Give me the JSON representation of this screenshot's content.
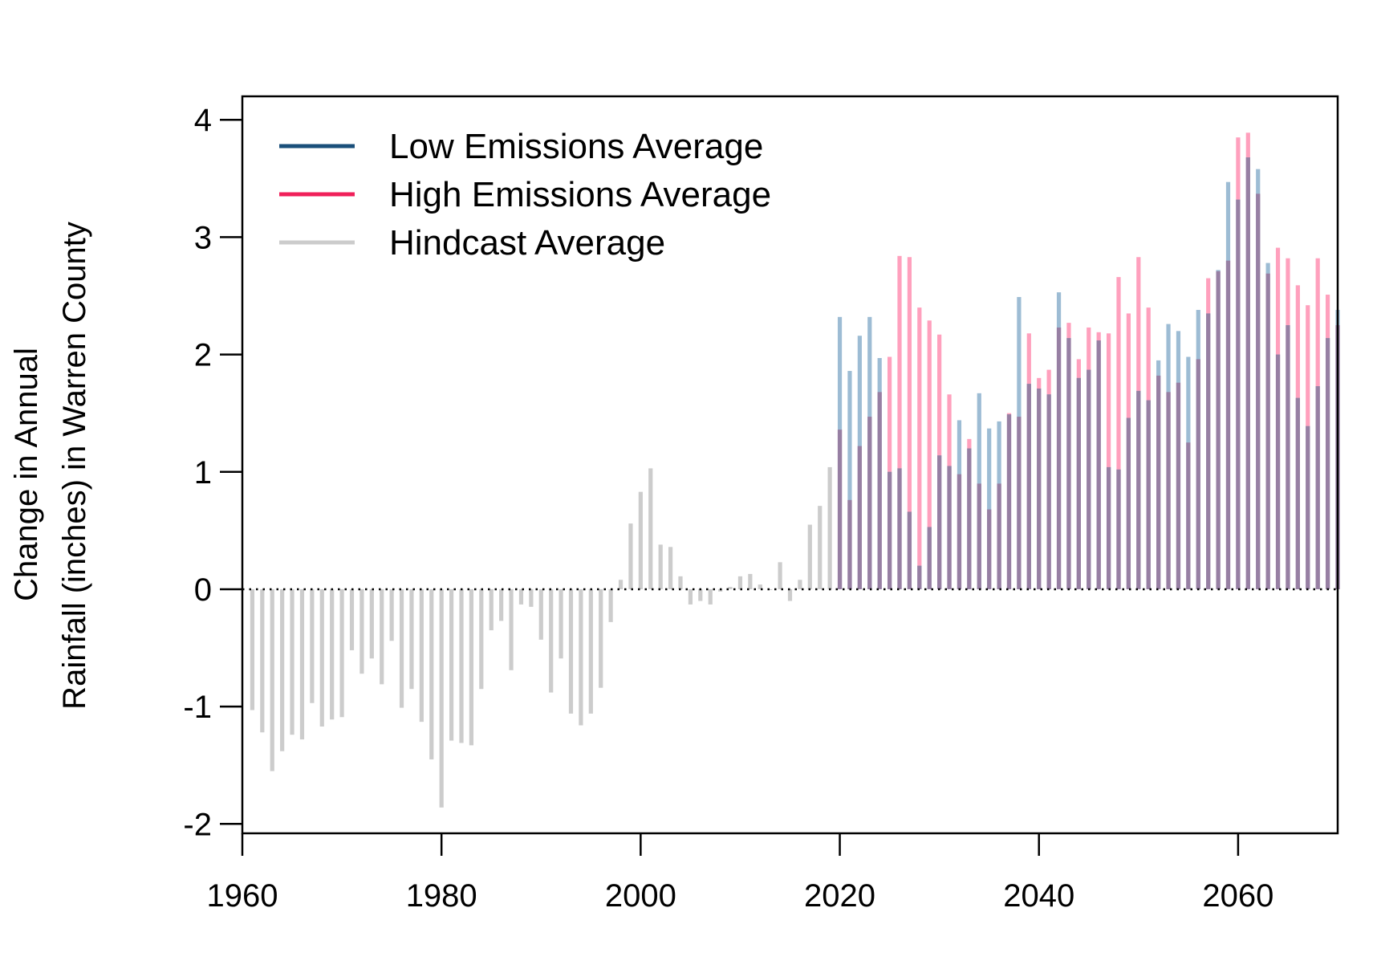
{
  "chart_data": {
    "type": "bar",
    "title": "",
    "xlabel": "",
    "ylabel_lines": [
      "Change in Annual",
      "Rainfall (inches) in Warren County"
    ],
    "xlim": [
      1960,
      2070
    ],
    "ylim": [
      -2.08,
      4.2
    ],
    "x_ticks": [
      1960,
      1980,
      2000,
      2020,
      2040,
      2060
    ],
    "y_ticks": [
      -2,
      -1,
      0,
      1,
      2,
      3,
      4
    ],
    "y_tick_labels": [
      "-2",
      "-1",
      "0",
      "1",
      "2",
      "3",
      "4"
    ],
    "x_tick_labels": [
      "1960",
      "1980",
      "2000",
      "2020",
      "2040",
      "2060"
    ],
    "zero_line": {
      "value": 0,
      "style": "dotted"
    },
    "grid": false,
    "legend": {
      "position": "top-left",
      "entries": [
        {
          "label": "Low Emissions Average",
          "color": "#1a4f7a"
        },
        {
          "label": "High Emissions Average",
          "color": "#f0205a"
        },
        {
          "label": "Hindcast Average",
          "color": "#cccccc"
        }
      ]
    },
    "series": [
      {
        "name": "Hindcast Average",
        "color": "#cccccc",
        "x": [
          1961,
          1962,
          1963,
          1964,
          1965,
          1966,
          1967,
          1968,
          1969,
          1970,
          1971,
          1972,
          1973,
          1974,
          1975,
          1976,
          1977,
          1978,
          1979,
          1980,
          1981,
          1982,
          1983,
          1984,
          1985,
          1986,
          1987,
          1988,
          1989,
          1990,
          1991,
          1992,
          1993,
          1994,
          1995,
          1996,
          1997,
          1998,
          1999,
          2000,
          2001,
          2002,
          2003,
          2004,
          2005,
          2006,
          2007,
          2008,
          2009,
          2010,
          2011,
          2012,
          2013,
          2014,
          2015,
          2016,
          2017,
          2018,
          2019
        ],
        "values": [
          -1.03,
          -1.22,
          -1.55,
          -1.38,
          -1.24,
          -1.28,
          -0.97,
          -1.17,
          -1.11,
          -1.09,
          -0.52,
          -0.72,
          -0.59,
          -0.81,
          -0.44,
          -1.01,
          -0.85,
          -1.13,
          -1.45,
          -1.86,
          -1.29,
          -1.31,
          -1.33,
          -0.85,
          -0.35,
          -0.27,
          -0.69,
          -0.13,
          -0.15,
          -0.43,
          -0.88,
          -0.59,
          -1.06,
          -1.16,
          -1.06,
          -0.84,
          -0.28,
          0.08,
          0.56,
          0.83,
          1.03,
          0.38,
          0.36,
          0.11,
          -0.13,
          -0.1,
          -0.13,
          -0.02,
          0.02,
          0.11,
          0.13,
          0.04,
          0.0,
          0.23,
          -0.1,
          0.08,
          0.55,
          0.71,
          1.04
        ]
      },
      {
        "name": "Low Emissions Average",
        "color": "#1a4f7a",
        "x": [
          2020,
          2021,
          2022,
          2023,
          2024,
          2025,
          2026,
          2027,
          2028,
          2029,
          2030,
          2031,
          2032,
          2033,
          2034,
          2035,
          2036,
          2037,
          2038,
          2039,
          2040,
          2041,
          2042,
          2043,
          2044,
          2045,
          2046,
          2047,
          2048,
          2049,
          2050,
          2051,
          2052,
          2053,
          2054,
          2055,
          2056,
          2057,
          2058,
          2059,
          2060,
          2061,
          2062,
          2063,
          2064,
          2065,
          2066,
          2067,
          2068,
          2069,
          2070
        ],
        "values": [
          2.32,
          1.86,
          2.16,
          2.32,
          1.97,
          1.0,
          1.03,
          0.66,
          0.2,
          0.53,
          1.14,
          1.05,
          1.44,
          1.2,
          1.67,
          1.37,
          1.43,
          1.49,
          2.49,
          1.75,
          1.71,
          1.66,
          2.53,
          2.14,
          1.8,
          1.87,
          2.12,
          1.04,
          1.02,
          1.46,
          1.69,
          1.61,
          1.95,
          2.26,
          2.2,
          1.98,
          2.38,
          2.35,
          2.72,
          3.47,
          3.32,
          3.68,
          3.58,
          2.78,
          2.0,
          2.25,
          1.63,
          1.39,
          1.73,
          2.14,
          2.38
        ]
      },
      {
        "name": "High Emissions Average",
        "color": "#f0205a",
        "x": [
          2020,
          2021,
          2022,
          2023,
          2024,
          2025,
          2026,
          2027,
          2028,
          2029,
          2030,
          2031,
          2032,
          2033,
          2034,
          2035,
          2036,
          2037,
          2038,
          2039,
          2040,
          2041,
          2042,
          2043,
          2044,
          2045,
          2046,
          2047,
          2048,
          2049,
          2050,
          2051,
          2052,
          2053,
          2054,
          2055,
          2056,
          2057,
          2058,
          2059,
          2060,
          2061,
          2062,
          2063,
          2064,
          2065,
          2066,
          2067,
          2068,
          2069,
          2070
        ],
        "values": [
          1.36,
          0.76,
          1.22,
          1.47,
          1.68,
          1.98,
          2.84,
          2.83,
          2.4,
          2.29,
          2.17,
          1.66,
          0.98,
          1.28,
          0.9,
          0.68,
          0.9,
          1.5,
          1.47,
          2.18,
          1.8,
          1.87,
          2.23,
          2.27,
          1.96,
          2.23,
          2.19,
          2.18,
          2.66,
          2.35,
          2.83,
          2.4,
          1.82,
          1.68,
          1.76,
          1.25,
          1.96,
          2.65,
          2.71,
          2.8,
          3.85,
          3.89,
          3.37,
          2.69,
          2.91,
          2.82,
          2.59,
          2.42,
          2.82,
          2.51,
          2.25
        ]
      }
    ]
  }
}
